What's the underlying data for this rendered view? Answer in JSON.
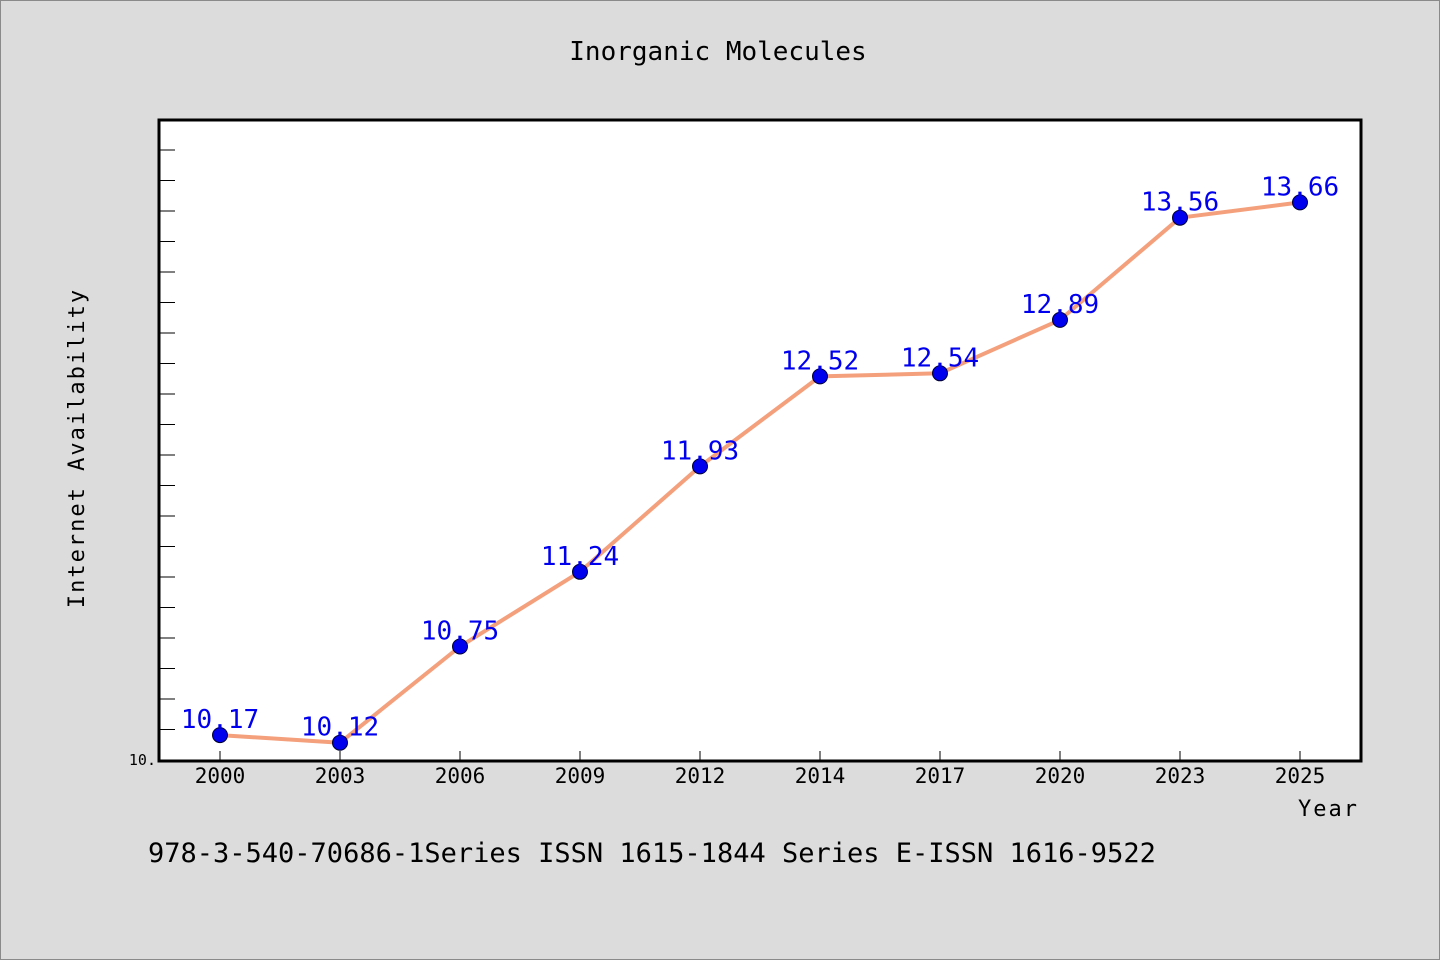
{
  "chart_data": {
    "type": "line",
    "title": "Inorganic Molecules",
    "xlabel": "Year",
    "ylabel": "Internet Availability",
    "categories": [
      "2000",
      "2003",
      "2006",
      "2009",
      "2012",
      "2014",
      "2017",
      "2020",
      "2023",
      "2025"
    ],
    "series": [
      {
        "values": [
          10.17,
          10.12,
          10.75,
          11.24,
          11.93,
          12.52,
          12.54,
          12.89,
          13.56,
          13.66
        ],
        "line_color": "#f4a07c",
        "marker_color": "#0000ee"
      }
    ],
    "data_labels": [
      "10.17",
      "10.12",
      "10.75",
      "11.24",
      "11.93",
      "12.52",
      "12.54",
      "12.89",
      "13.56",
      "13.66"
    ],
    "ytick_labels": [
      "10."
    ],
    "ylim": [
      10.0,
      14.2
    ],
    "grid": false,
    "legend": "none"
  },
  "footnote": "978-3-540-70686-1Series ISSN 1615-1844 Series E-ISSN 1616-9522",
  "colors": {
    "background": "#dcdcdc",
    "plot_background": "#ffffff",
    "line": "#f4a07c",
    "marker": "#0000ee",
    "data_label": "#0000ee"
  }
}
